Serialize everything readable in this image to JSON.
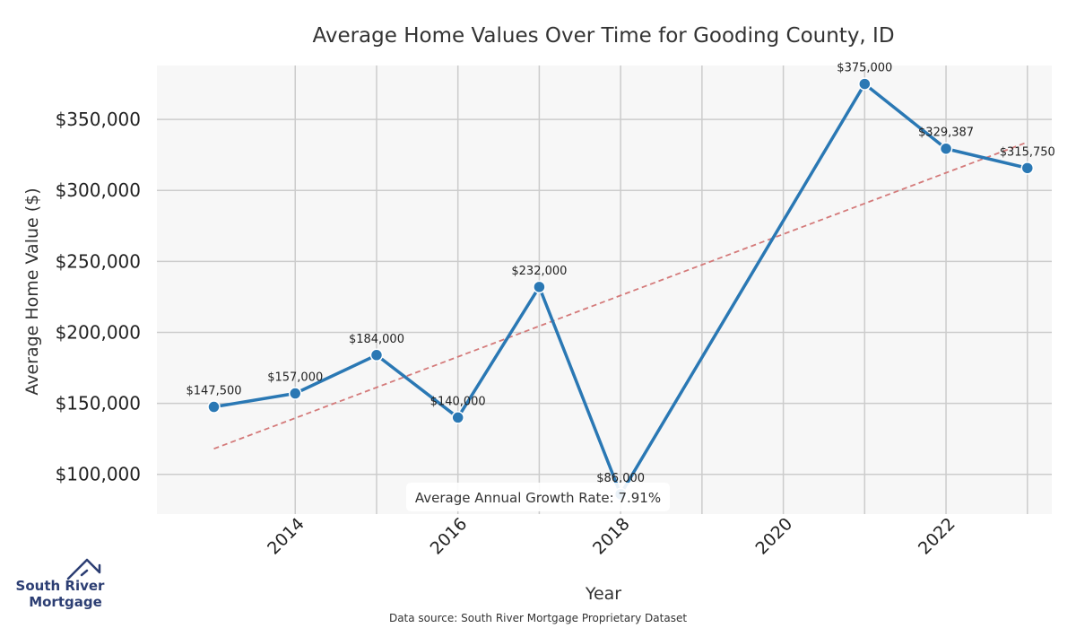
{
  "chart_data": {
    "type": "line",
    "title": "Average Home Values Over Time for Gooding County, ID",
    "xlabel": "Year",
    "ylabel": "Average Home Value ($)",
    "x": [
      2013,
      2014,
      2015,
      2016,
      2017,
      2018,
      2021,
      2022,
      2023
    ],
    "values": [
      147500,
      157000,
      184000,
      140000,
      232000,
      86000,
      375000,
      329387,
      315750
    ],
    "point_labels": [
      "$147,500",
      "$157,000",
      "$184,000",
      "$140,000",
      "$232,000",
      "$86,000",
      "$375,000",
      "$329,387",
      "$315,750"
    ],
    "x_ticks": [
      2014,
      2016,
      2018,
      2020,
      2022
    ],
    "x_tick_labels": [
      "2014",
      "2016",
      "2018",
      "2020",
      "2022"
    ],
    "y_ticks": [
      100000,
      150000,
      200000,
      250000,
      300000,
      350000
    ],
    "y_tick_labels": [
      "$100,000",
      "$150,000",
      "$200,000",
      "$250,000",
      "$300,000",
      "$350,000"
    ],
    "xlim": [
      2012.3,
      2023.3
    ],
    "ylim": [
      72000,
      388000
    ],
    "grid": true,
    "trendline": {
      "x": [
        2013,
        2023
      ],
      "y": [
        118000,
        334000
      ],
      "color": "#d47a7a",
      "style": "dashed"
    },
    "annotation": "Average Annual Growth Rate: 7.91%",
    "line_color": "#2a78b4"
  },
  "footer": {
    "source": "Data source: South River Mortgage Proprietary Dataset"
  },
  "logo": {
    "line1": "South River",
    "line2": "Mortgage",
    "icon": "house-outline-icon"
  },
  "colors": {
    "plot_bg": "#f7f7f7",
    "grid": "#cccccc",
    "brand": "#2c3e73"
  }
}
